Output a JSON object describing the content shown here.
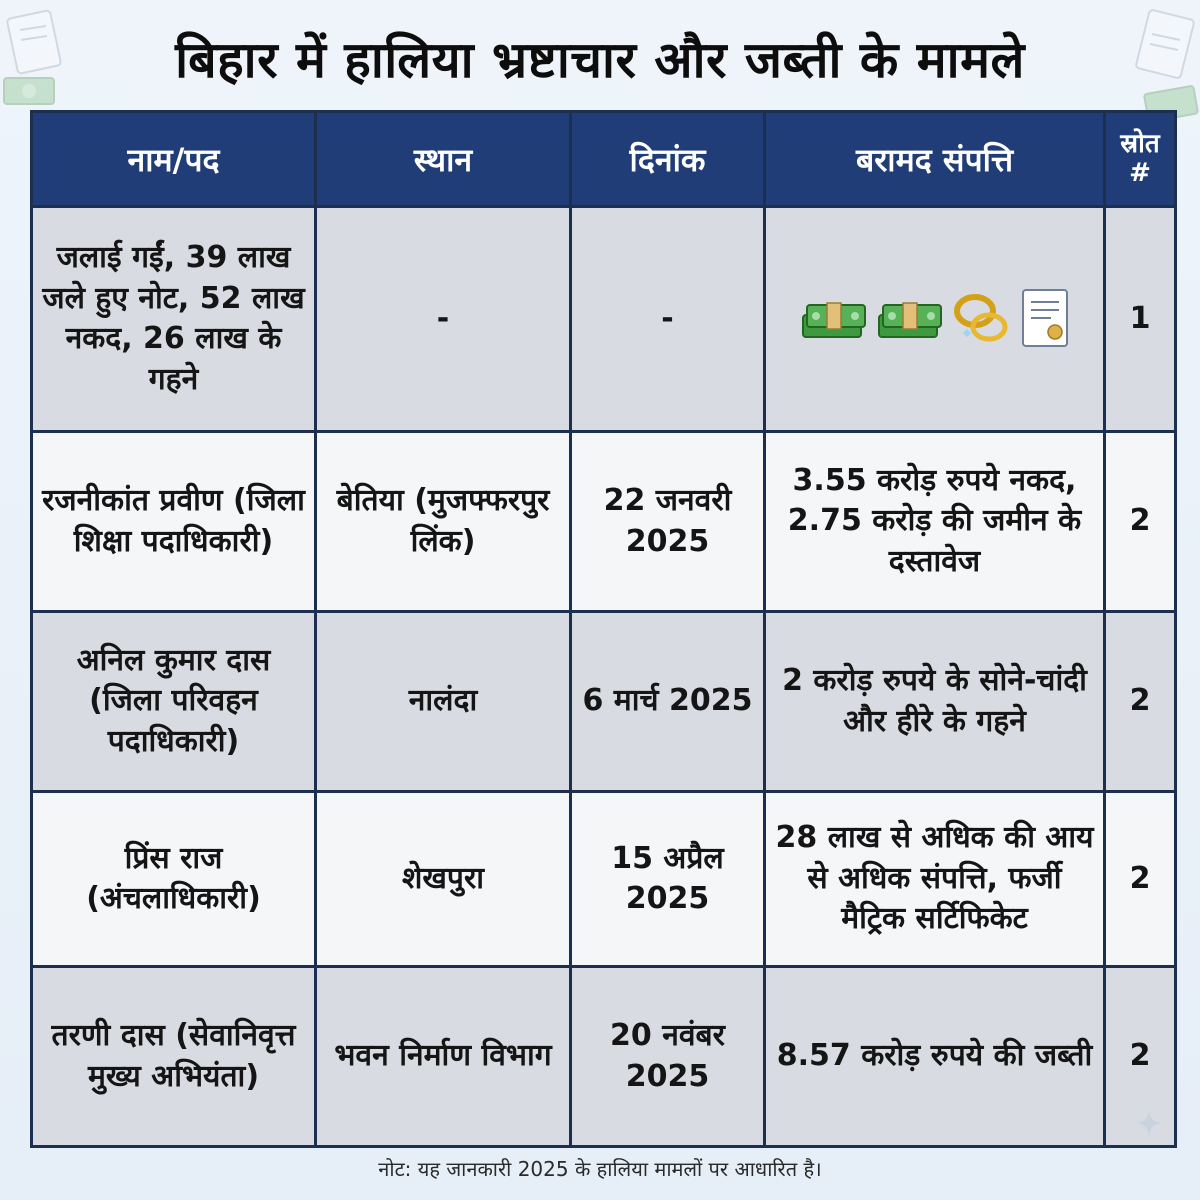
{
  "title": "बिहार में हालिया भ्रष्टाचार और जब्ती के मामले",
  "columns": [
    "नाम/पद",
    "स्थान",
    "दिनांक",
    "बरामद संपत्ति",
    "स्रोत #"
  ],
  "rows": [
    {
      "name": "जलाई गईं, 39 लाख जले हुए नोट, 52 लाख नकद, 26 लाख के गहने",
      "place": "-",
      "date": "-",
      "assets": "",
      "source": "1"
    },
    {
      "name": "रजनीकांत प्रवीण (जिला शिक्षा पदाधिकारी)",
      "place": "बेतिया (मुजफ्फरपुर लिंक)",
      "date": "22 जनवरी 2025",
      "assets": "3.55 करोड़ रुपये नकद, 2.75 करोड़ की जमीन के दस्तावेज",
      "source": "2"
    },
    {
      "name": "अनिल कुमार दास (जिला परिवहन पदाधिकारी)",
      "place": "नालंदा",
      "date": "6 मार्च 2025",
      "assets": "2 करोड़ रुपये के सोने-चांदी और हीरे के गहने",
      "source": "2"
    },
    {
      "name": "प्रिंस राज (अंचलाधिकारी)",
      "place": "शेखपुरा",
      "date": "15 अप्रैल 2025",
      "assets": "28 लाख से अधिक की आय से अधिक संपत्ति, फर्जी मैट्रिक सर्टिफिकेट",
      "source": "2"
    },
    {
      "name": "तरणी दास (सेवानिवृत्त मुख्य अभियंता)",
      "place": "भवन निर्माण विभाग",
      "date": "20 नवंबर 2025",
      "assets": "8.57 करोड़ रुपये की जब्ती",
      "source": "2"
    }
  ],
  "row1_icons": [
    "money-stack-icon",
    "money-stack-icon",
    "gold-rings-icon",
    "certificate-document-icon"
  ],
  "note": "नोट: यह जानकारी 2025 के हालिया मामलों पर आधारित है।",
  "colors": {
    "header_bg": "#203d78",
    "row_shade": "#d8dbe1",
    "row_light": "#f4f6f8",
    "border": "#1d2f4f"
  }
}
